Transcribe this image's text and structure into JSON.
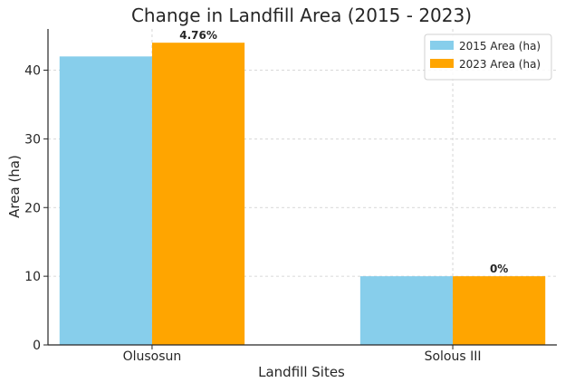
{
  "chart_data": {
    "type": "bar",
    "title": "Change in Landfill Area (2015 - 2023)",
    "xlabel": "Landfill Sites",
    "ylabel": "Area (ha)",
    "categories": [
      "Olusosun",
      "Solous III"
    ],
    "series": [
      {
        "name": "2015 Area (ha)",
        "values": [
          42,
          10
        ],
        "color": "#87CEEB"
      },
      {
        "name": "2023 Area (ha)",
        "values": [
          44,
          10
        ],
        "color": "#FFA500"
      }
    ],
    "bar_labels": [
      "4.76%",
      "0%"
    ],
    "ylim": [
      0,
      46
    ],
    "yticks": [
      0,
      10,
      20,
      30,
      40
    ],
    "grid": true,
    "legend_position": "top-right"
  }
}
